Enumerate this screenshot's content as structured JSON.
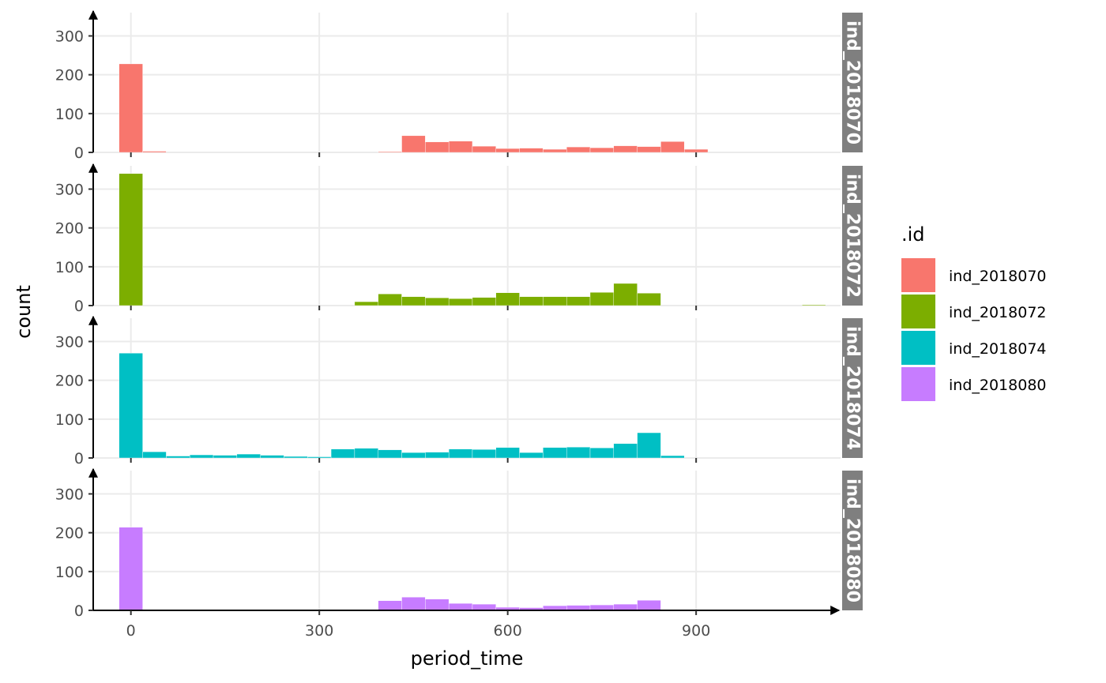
{
  "chart_data": {
    "type": "bar",
    "xlabel": "period_time",
    "ylabel": "count",
    "xlim": [
      -60,
      1130
    ],
    "ylim": [
      0,
      360
    ],
    "x_ticks": [
      0,
      300,
      600,
      900
    ],
    "y_ticks": [
      0,
      100,
      200,
      300
    ],
    "bin_width": 37.5,
    "grid": true,
    "legend": {
      "title": ".id",
      "position": "right",
      "entries": [
        "ind_2018070",
        "ind_2018072",
        "ind_2018074",
        "ind_2018080"
      ]
    },
    "series": [
      {
        "name": "ind_2018070",
        "strip_label": "ind_2018070",
        "color": "#F8766D",
        "bins": [
          {
            "x": 0,
            "count": 228
          },
          {
            "x": 37.5,
            "count": 3
          },
          {
            "x": 412.5,
            "count": 2
          },
          {
            "x": 450,
            "count": 43
          },
          {
            "x": 487.5,
            "count": 27
          },
          {
            "x": 525,
            "count": 29
          },
          {
            "x": 562.5,
            "count": 16
          },
          {
            "x": 600,
            "count": 10
          },
          {
            "x": 637.5,
            "count": 11
          },
          {
            "x": 675,
            "count": 8
          },
          {
            "x": 712.5,
            "count": 14
          },
          {
            "x": 750,
            "count": 12
          },
          {
            "x": 787.5,
            "count": 17
          },
          {
            "x": 825,
            "count": 15
          },
          {
            "x": 862.5,
            "count": 28
          },
          {
            "x": 900,
            "count": 8
          }
        ]
      },
      {
        "name": "ind_2018072",
        "strip_label": "ind_2018072",
        "color": "#7CAE00",
        "bins": [
          {
            "x": 0,
            "count": 340
          },
          {
            "x": 375,
            "count": 10
          },
          {
            "x": 412.5,
            "count": 30
          },
          {
            "x": 450,
            "count": 23
          },
          {
            "x": 487.5,
            "count": 20
          },
          {
            "x": 525,
            "count": 18
          },
          {
            "x": 562.5,
            "count": 21
          },
          {
            "x": 600,
            "count": 33
          },
          {
            "x": 637.5,
            "count": 23
          },
          {
            "x": 675,
            "count": 23
          },
          {
            "x": 712.5,
            "count": 23
          },
          {
            "x": 750,
            "count": 34
          },
          {
            "x": 787.5,
            "count": 57
          },
          {
            "x": 825,
            "count": 32
          },
          {
            "x": 1087.5,
            "count": 2
          }
        ]
      },
      {
        "name": "ind_2018074",
        "strip_label": "ind_2018074",
        "color": "#00BFC4",
        "bins": [
          {
            "x": 0,
            "count": 270
          },
          {
            "x": 37.5,
            "count": 16
          },
          {
            "x": 75,
            "count": 5
          },
          {
            "x": 112.5,
            "count": 8
          },
          {
            "x": 150,
            "count": 7
          },
          {
            "x": 187.5,
            "count": 10
          },
          {
            "x": 225,
            "count": 7
          },
          {
            "x": 262.5,
            "count": 4
          },
          {
            "x": 300,
            "count": 3
          },
          {
            "x": 337.5,
            "count": 23
          },
          {
            "x": 375,
            "count": 25
          },
          {
            "x": 412.5,
            "count": 21
          },
          {
            "x": 450,
            "count": 14
          },
          {
            "x": 487.5,
            "count": 15
          },
          {
            "x": 525,
            "count": 23
          },
          {
            "x": 562.5,
            "count": 22
          },
          {
            "x": 600,
            "count": 27
          },
          {
            "x": 637.5,
            "count": 14
          },
          {
            "x": 675,
            "count": 27
          },
          {
            "x": 712.5,
            "count": 28
          },
          {
            "x": 750,
            "count": 26
          },
          {
            "x": 787.5,
            "count": 37
          },
          {
            "x": 825,
            "count": 65
          },
          {
            "x": 862.5,
            "count": 6
          }
        ]
      },
      {
        "name": "ind_2018080",
        "strip_label": "ind_2018080",
        "color": "#C77CFF",
        "bins": [
          {
            "x": 0,
            "count": 214
          },
          {
            "x": 412.5,
            "count": 25
          },
          {
            "x": 450,
            "count": 34
          },
          {
            "x": 487.5,
            "count": 29
          },
          {
            "x": 525,
            "count": 18
          },
          {
            "x": 562.5,
            "count": 16
          },
          {
            "x": 600,
            "count": 8
          },
          {
            "x": 637.5,
            "count": 7
          },
          {
            "x": 675,
            "count": 12
          },
          {
            "x": 712.5,
            "count": 13
          },
          {
            "x": 750,
            "count": 14
          },
          {
            "x": 787.5,
            "count": 16
          },
          {
            "x": 825,
            "count": 26
          }
        ]
      }
    ]
  }
}
